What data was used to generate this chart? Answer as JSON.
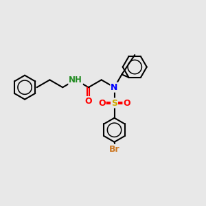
{
  "background_color": "#e8e8e8",
  "bond_color": "#000000",
  "bond_width": 1.5,
  "atom_colors": {
    "N": "#0000ff",
    "O": "#ff0000",
    "S": "#ccaa00",
    "Br": "#cc7722",
    "H": "#228B22",
    "C": "#000000"
  },
  "figsize": [
    3.0,
    3.0
  ],
  "dpi": 100
}
